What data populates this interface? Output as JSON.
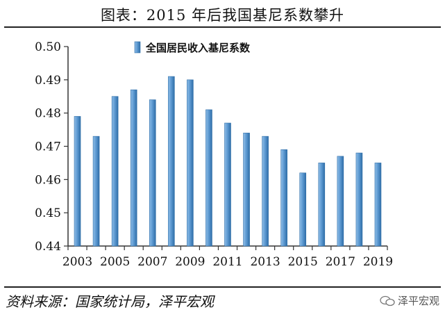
{
  "header": {
    "title": "图表：2015 年后我国基尼系数攀升"
  },
  "footer": {
    "source": "资料来源：国家统计局，泽平宏观",
    "watermark": "泽平宏观",
    "watermark_icon": "wechat-icon"
  },
  "colors": {
    "bar_fill": "#5f9bd3",
    "bar_edge": "#2f6ea8",
    "axis": "#333333"
  },
  "chart_data": {
    "type": "bar",
    "legend": "全国居民收入基尼系数",
    "legend_position": "top-left",
    "grid": false,
    "categories": [
      "2003",
      "2004",
      "2005",
      "2006",
      "2007",
      "2008",
      "2009",
      "2010",
      "2011",
      "2012",
      "2013",
      "2014",
      "2015",
      "2016",
      "2017",
      "2018",
      "2019"
    ],
    "x_tick_labels": [
      "2003",
      "2005",
      "2007",
      "2009",
      "2011",
      "2013",
      "2015",
      "2017",
      "2019"
    ],
    "series": [
      {
        "name": "全国居民收入基尼系数",
        "values": [
          0.479,
          0.473,
          0.485,
          0.487,
          0.484,
          0.491,
          0.49,
          0.481,
          0.477,
          0.474,
          0.473,
          0.469,
          0.462,
          0.465,
          0.467,
          0.468,
          0.465
        ]
      }
    ],
    "ylim": [
      0.44,
      0.5
    ],
    "y_tick_labels": [
      "0.50",
      "0.49",
      "0.48",
      "0.47",
      "0.46",
      "0.45",
      "0.44"
    ]
  }
}
